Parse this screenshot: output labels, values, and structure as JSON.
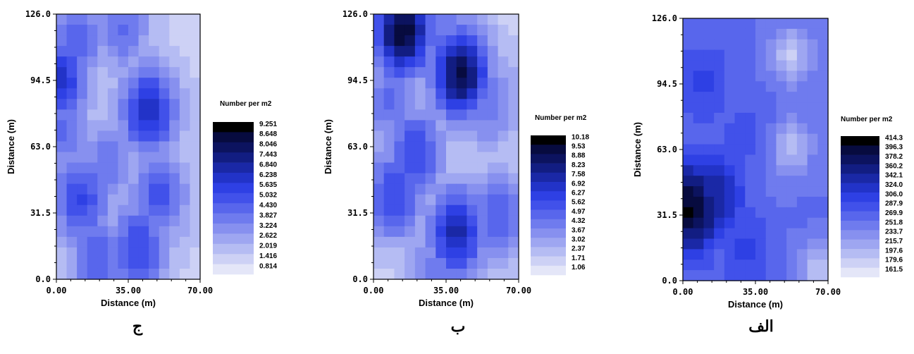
{
  "chart_data": [
    {
      "type": "heatmap",
      "panel_label": "ج",
      "xlabel": "Distance (m)",
      "ylabel": "Distance (m)",
      "xlim": [
        0,
        70
      ],
      "ylim": [
        0,
        126
      ],
      "xticks": [
        "0.00",
        "35.00",
        "70.00"
      ],
      "yticks": [
        "0.0",
        "31.5",
        "63.0",
        "94.5",
        "126.0"
      ],
      "legend_title": "Number per m2",
      "legend_levels": [
        "9.251",
        "8.648",
        "8.046",
        "7.443",
        "6.840",
        "6.238",
        "5.635",
        "5.032",
        "4.430",
        "3.827",
        "3.224",
        "2.622",
        "2.019",
        "1.416",
        "0.814"
      ],
      "hotspots": [
        {
          "x": 2,
          "y": 95,
          "v": 0.62
        },
        {
          "x": 45,
          "y": 80,
          "v": 0.65
        },
        {
          "x": 10,
          "y": 115,
          "v": 0.45
        },
        {
          "x": 32,
          "y": 120,
          "v": 0.4
        },
        {
          "x": 12,
          "y": 38,
          "v": 0.55
        },
        {
          "x": 40,
          "y": 15,
          "v": 0.55
        },
        {
          "x": 50,
          "y": 40,
          "v": 0.5
        },
        {
          "x": 25,
          "y": 55,
          "v": 0.38
        },
        {
          "x": 20,
          "y": 10,
          "v": 0.45
        },
        {
          "x": 3,
          "y": 70,
          "v": 0.4
        }
      ]
    },
    {
      "type": "heatmap",
      "panel_label": "ب",
      "xlabel": "Distance (m)",
      "ylabel": "Distance (m)",
      "xlim": [
        0,
        70
      ],
      "ylim": [
        0,
        126
      ],
      "xticks": [
        "0.00",
        "35.00",
        "70.00"
      ],
      "yticks": [
        "0.0",
        "31.5",
        "63.0",
        "94.5",
        "126.0"
      ],
      "legend_title": "Number per m2",
      "legend_levels": [
        "10.18",
        "9.53",
        "8.88",
        "8.23",
        "7.58",
        "6.92",
        "6.27",
        "5.62",
        "4.97",
        "4.32",
        "3.67",
        "3.02",
        "2.37",
        "1.71",
        "1.06"
      ],
      "hotspots": [
        {
          "x": 14,
          "y": 118,
          "v": 0.95
        },
        {
          "x": 42,
          "y": 98,
          "v": 0.9
        },
        {
          "x": 40,
          "y": 22,
          "v": 0.7
        },
        {
          "x": 10,
          "y": 40,
          "v": 0.55
        },
        {
          "x": 20,
          "y": 60,
          "v": 0.55
        },
        {
          "x": 60,
          "y": 30,
          "v": 0.45
        },
        {
          "x": 8,
          "y": 85,
          "v": 0.4
        },
        {
          "x": 55,
          "y": 85,
          "v": 0.4
        },
        {
          "x": 30,
          "y": 5,
          "v": 0.35
        },
        {
          "x": 35,
          "y": 122,
          "v": 0.35
        }
      ]
    },
    {
      "type": "heatmap",
      "panel_label": "الف",
      "xlabel": "Distance (m)",
      "ylabel": "Distance (m)",
      "xlim": [
        0,
        70
      ],
      "ylim": [
        0,
        126
      ],
      "xticks": [
        "0.00",
        "35.00",
        "70.00"
      ],
      "yticks": [
        "0.0",
        "31.5",
        "63.0",
        "94.5",
        "126.0"
      ],
      "legend_title": "Number per m2",
      "legend_levels": [
        "414.3",
        "396.3",
        "378.2",
        "360.2",
        "342.1",
        "324.0",
        "306.0",
        "287.9",
        "269.9",
        "251.8",
        "233.7",
        "215.7",
        "197.6",
        "179.6",
        "161.5"
      ],
      "hotspots": [
        {
          "x": 4,
          "y": 35,
          "v": 0.98
        },
        {
          "x": 15,
          "y": 40,
          "v": 0.75
        },
        {
          "x": 10,
          "y": 95,
          "v": 0.55
        },
        {
          "x": 30,
          "y": 15,
          "v": 0.55
        },
        {
          "x": 30,
          "y": 70,
          "v": 0.5
        },
        {
          "x": 60,
          "y": 30,
          "v": 0.4
        },
        {
          "x": 20,
          "y": 120,
          "v": 0.45
        }
      ],
      "low_spots": [
        {
          "x": 52,
          "y": 108,
          "v": 0.1
        },
        {
          "x": 52,
          "y": 64,
          "v": 0.12
        },
        {
          "x": 65,
          "y": 5,
          "v": 0.12
        }
      ]
    }
  ]
}
